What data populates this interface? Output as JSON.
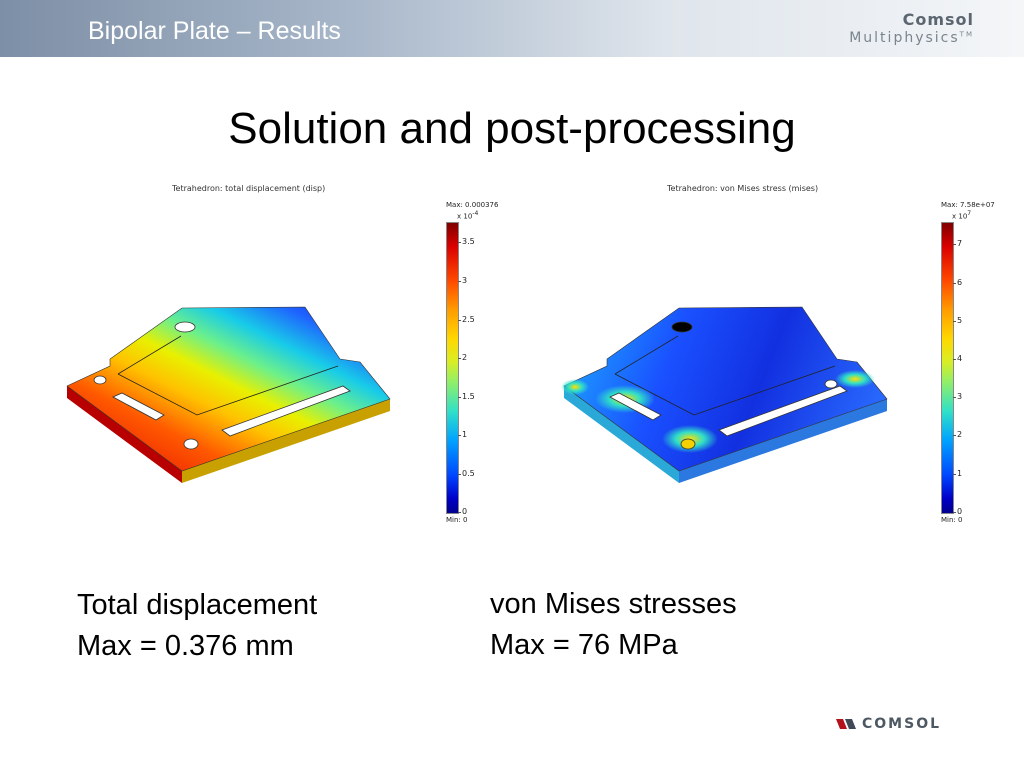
{
  "header": {
    "title": "Bipolar Plate – Results",
    "logo_line1": "Comsol",
    "logo_line2": "Multiphysics",
    "logo_tm": "TM"
  },
  "slide": {
    "title": "Solution and post-processing"
  },
  "plots": [
    {
      "title": "Tetrahedron: total displacement (disp)",
      "max_label": "Max: 0.000376",
      "exponent": "x 10",
      "exponent_power": "-4",
      "min_label": "Min: 0",
      "ticks": [
        "3.5",
        "3",
        "2.5",
        "2",
        "1.5",
        "1",
        "0.5",
        "0"
      ],
      "colormap": "jet"
    },
    {
      "title": "Tetrahedron: von Mises stress (mises)",
      "max_label": "Max: 7.58e+07",
      "exponent": "x 10",
      "exponent_power": "7",
      "min_label": "Min: 0",
      "ticks": [
        "7",
        "6",
        "5",
        "4",
        "3",
        "2",
        "1",
        "0"
      ],
      "colormap": "jet"
    }
  ],
  "captions": {
    "left_line1": "Total displacement",
    "left_line2": "Max = 0.376 mm",
    "right_line1": "von Mises stresses",
    "right_line2": "Max = 76 MPa"
  },
  "footer": {
    "logo": "COMSOL"
  },
  "colors": {
    "header_start": "#7d8fa6",
    "header_end": "#f4f6f8",
    "title": "#000000"
  }
}
